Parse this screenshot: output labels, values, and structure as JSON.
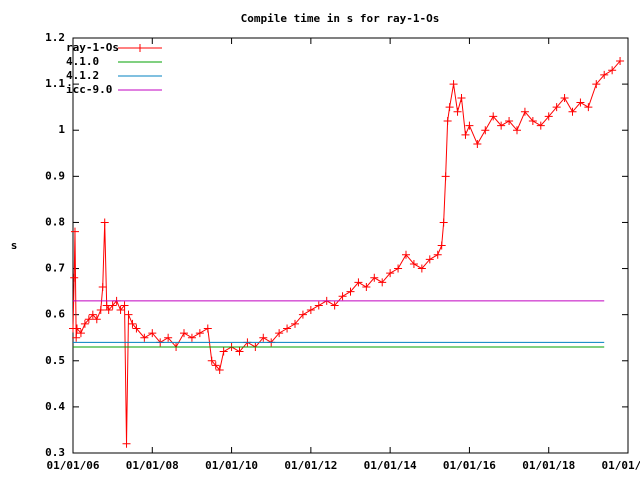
{
  "chart_data": {
    "type": "line",
    "title": "Compile time in s for ray-1-Os",
    "ylabel": "s",
    "xlim": [
      2006,
      2020
    ],
    "xticks": [
      {
        "value": 2006,
        "label": "01/01/06"
      },
      {
        "value": 2008,
        "label": "01/01/08"
      },
      {
        "value": 2010,
        "label": "01/01/10"
      },
      {
        "value": 2012,
        "label": "01/01/12"
      },
      {
        "value": 2014,
        "label": "01/01/14"
      },
      {
        "value": 2016,
        "label": "01/01/16"
      },
      {
        "value": 2018,
        "label": "01/01/18"
      },
      {
        "value": 2020,
        "label": "01/01/20"
      }
    ],
    "ylim": [
      0.3,
      1.2
    ],
    "yticks": [
      0.3,
      0.4,
      0.5,
      0.6,
      0.7,
      0.8,
      0.9,
      1,
      1.1,
      1.2
    ],
    "legend": "top-left",
    "series": [
      {
        "name": "ray-1-Os",
        "color": "#ff0000",
        "marker": "plus",
        "x": [
          2006.0,
          2006.03,
          2006.05,
          2006.08,
          2006.1,
          2006.2,
          2006.3,
          2006.4,
          2006.5,
          2006.6,
          2006.7,
          2006.75,
          2006.8,
          2006.85,
          2006.9,
          2007.0,
          2007.1,
          2007.2,
          2007.3,
          2007.35,
          2007.4,
          2007.5,
          2007.6,
          2007.8,
          2008.0,
          2008.2,
          2008.4,
          2008.6,
          2008.8,
          2009.0,
          2009.2,
          2009.4,
          2009.5,
          2009.6,
          2009.7,
          2009.8,
          2010.0,
          2010.2,
          2010.4,
          2010.6,
          2010.8,
          2011.0,
          2011.2,
          2011.4,
          2011.6,
          2011.8,
          2012.0,
          2012.2,
          2012.4,
          2012.6,
          2012.8,
          2013.0,
          2013.2,
          2013.4,
          2013.6,
          2013.8,
          2014.0,
          2014.2,
          2014.4,
          2014.6,
          2014.8,
          2015.0,
          2015.2,
          2015.3,
          2015.35,
          2015.4,
          2015.45,
          2015.5,
          2015.6,
          2015.7,
          2015.8,
          2015.9,
          2016.0,
          2016.2,
          2016.4,
          2016.6,
          2016.8,
          2017.0,
          2017.2,
          2017.4,
          2017.6,
          2017.8,
          2018.0,
          2018.2,
          2018.4,
          2018.6,
          2018.8,
          2019.0,
          2019.2,
          2019.4,
          2019.6,
          2019.8
        ],
        "values": [
          0.57,
          0.68,
          0.78,
          0.55,
          0.57,
          0.56,
          0.58,
          0.59,
          0.6,
          0.59,
          0.61,
          0.66,
          0.8,
          0.62,
          0.61,
          0.62,
          0.63,
          0.61,
          0.62,
          0.32,
          0.6,
          0.58,
          0.57,
          0.55,
          0.56,
          0.54,
          0.55,
          0.53,
          0.56,
          0.55,
          0.56,
          0.57,
          0.5,
          0.49,
          0.48,
          0.52,
          0.53,
          0.52,
          0.54,
          0.53,
          0.55,
          0.54,
          0.56,
          0.57,
          0.58,
          0.6,
          0.61,
          0.62,
          0.63,
          0.62,
          0.64,
          0.65,
          0.67,
          0.66,
          0.68,
          0.67,
          0.69,
          0.7,
          0.73,
          0.71,
          0.7,
          0.72,
          0.73,
          0.75,
          0.8,
          0.9,
          1.02,
          1.05,
          1.1,
          1.04,
          1.07,
          0.99,
          1.01,
          0.97,
          1.0,
          1.03,
          1.01,
          1.02,
          1.0,
          1.04,
          1.02,
          1.01,
          1.03,
          1.05,
          1.07,
          1.04,
          1.06,
          1.05,
          1.1,
          1.12,
          1.13,
          1.15
        ]
      },
      {
        "name": "4.1.0",
        "color": "#00a000",
        "x": [
          2006,
          2019.4
        ],
        "values": [
          0.53,
          0.53
        ]
      },
      {
        "name": "4.1.2",
        "color": "#0080c0",
        "x": [
          2006,
          2019.4
        ],
        "values": [
          0.54,
          0.54
        ]
      },
      {
        "name": "icc-9.0",
        "color": "#c000c0",
        "x": [
          2006,
          2019.4
        ],
        "values": [
          0.63,
          0.63
        ]
      }
    ]
  }
}
